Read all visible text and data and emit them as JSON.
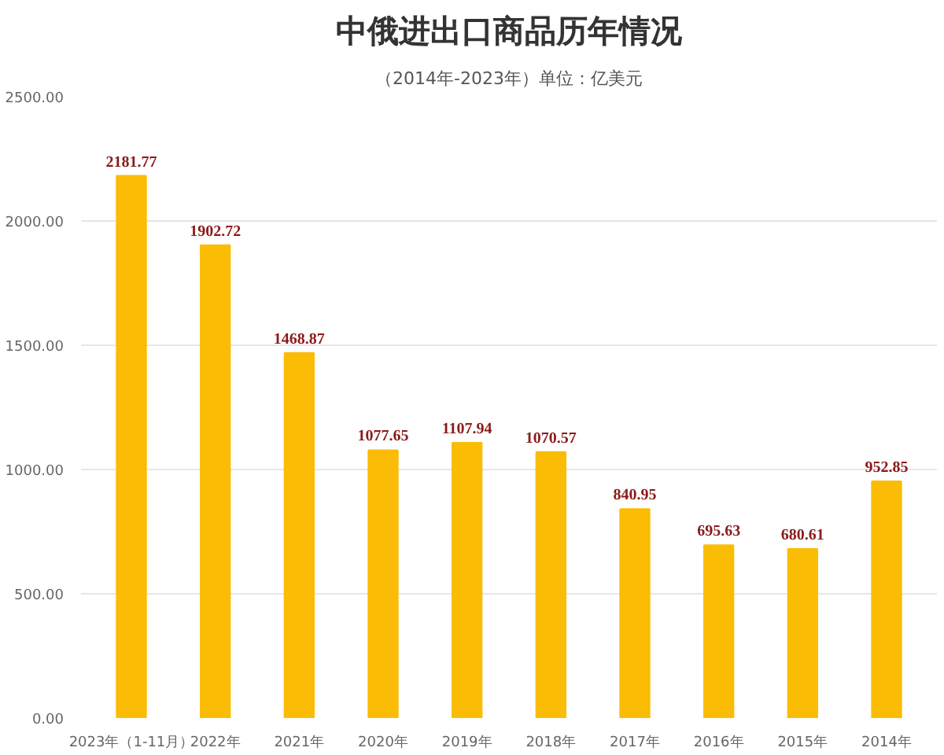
{
  "chart_data": {
    "type": "bar",
    "title": "中俄进出口商品历年情况",
    "subtitle": "（2014年-2023年）单位：亿美元",
    "categories": [
      "2023年（1-11月）",
      "2022年",
      "2021年",
      "2020年",
      "2019年",
      "2018年",
      "2017年",
      "2016年",
      "2015年",
      "2014年"
    ],
    "values": [
      2181.77,
      1902.72,
      1468.87,
      1077.65,
      1107.94,
      1070.57,
      840.95,
      695.63,
      680.61,
      952.85
    ],
    "color": "#fbbc05",
    "data_labels": true,
    "ylim": [
      0,
      2500
    ],
    "yticks": [
      {
        "value": 0,
        "label": "0.00"
      },
      {
        "value": 500,
        "label": "500.00"
      },
      {
        "value": 1000,
        "label": "1000.00"
      },
      {
        "value": 1500,
        "label": "1500.00"
      },
      {
        "value": 2000,
        "label": "2000.00"
      },
      {
        "value": 2500,
        "label": "2500.00"
      }
    ],
    "grid": "y"
  }
}
